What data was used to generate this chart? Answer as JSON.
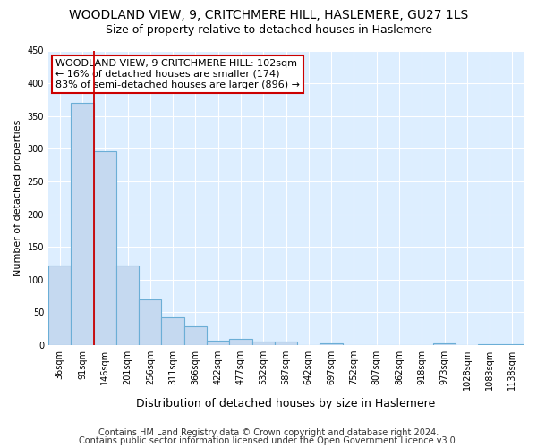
{
  "title": "WOODLAND VIEW, 9, CRITCHMERE HILL, HASLEMERE, GU27 1LS",
  "subtitle": "Size of property relative to detached houses in Haslemere",
  "xlabel": "Distribution of detached houses by size in Haslemere",
  "ylabel": "Number of detached properties",
  "bar_labels": [
    "36sqm",
    "91sqm",
    "146sqm",
    "201sqm",
    "256sqm",
    "311sqm",
    "366sqm",
    "422sqm",
    "477sqm",
    "532sqm",
    "587sqm",
    "642sqm",
    "697sqm",
    "752sqm",
    "807sqm",
    "862sqm",
    "918sqm",
    "973sqm",
    "1028sqm",
    "1083sqm",
    "1138sqm"
  ],
  "bar_values": [
    122,
    370,
    297,
    122,
    70,
    42,
    29,
    7,
    10,
    5,
    5,
    0,
    3,
    0,
    0,
    0,
    0,
    2,
    0,
    1,
    1
  ],
  "bar_color": "#c5d9f0",
  "bar_edge_color": "#6baed6",
  "background_color": "#ddeeff",
  "grid_color": "#ffffff",
  "vline_color": "#cc0000",
  "vline_index": 1.5,
  "annotation_text": "WOODLAND VIEW, 9 CRITCHMERE HILL: 102sqm\n← 16% of detached houses are smaller (174)\n83% of semi-detached houses are larger (896) →",
  "annotation_box_color": "#ffffff",
  "annotation_box_edge_color": "#cc0000",
  "ylim": [
    0,
    450
  ],
  "yticks": [
    0,
    50,
    100,
    150,
    200,
    250,
    300,
    350,
    400,
    450
  ],
  "footer1": "Contains HM Land Registry data © Crown copyright and database right 2024.",
  "footer2": "Contains public sector information licensed under the Open Government Licence v3.0.",
  "title_fontsize": 10,
  "subtitle_fontsize": 9,
  "ylabel_fontsize": 8,
  "xlabel_fontsize": 9,
  "tick_fontsize": 7,
  "annot_fontsize": 8,
  "footer_fontsize": 7
}
